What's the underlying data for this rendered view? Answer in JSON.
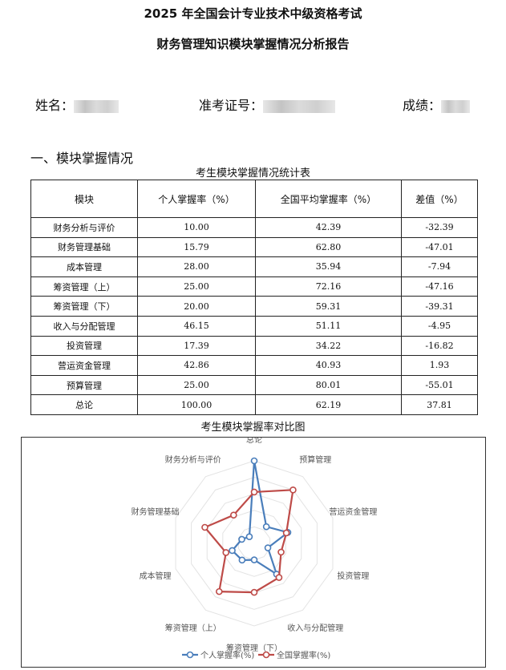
{
  "title_line1": "2025 年全国会计专业技术中级资格考试",
  "title_line2": "财务管理知识模块掌握情况分析报告",
  "info": {
    "name_label": "姓名：",
    "id_label": "准考证号：",
    "score_label": "成绩："
  },
  "section_title": "一、模块掌握情况",
  "table": {
    "caption": "考生模块掌握情况统计表",
    "headers": [
      "模块",
      "个人掌握率（%）",
      "全国平均掌握率（%）",
      "差值（%）"
    ],
    "rows": [
      [
        "财务分析与评价",
        "10.00",
        "42.39",
        "-32.39"
      ],
      [
        "财务管理基础",
        "15.79",
        "62.80",
        "-47.01"
      ],
      [
        "成本管理",
        "28.00",
        "35.94",
        "-7.94"
      ],
      [
        "筹资管理（上）",
        "25.00",
        "72.16",
        "-47.16"
      ],
      [
        "筹资管理（下）",
        "20.00",
        "59.31",
        "-39.31"
      ],
      [
        "收入与分配管理",
        "46.15",
        "51.11",
        "-4.95"
      ],
      [
        "投资管理",
        "17.39",
        "34.22",
        "-16.82"
      ],
      [
        "营运资金管理",
        "42.86",
        "40.93",
        "1.93"
      ],
      [
        "预算管理",
        "25.00",
        "80.01",
        "-55.01"
      ],
      [
        "总论",
        "100.00",
        "62.19",
        "37.81"
      ]
    ]
  },
  "chart_data": {
    "type": "radar",
    "title": "考生模块掌握率对比图",
    "categories": [
      "总论",
      "预算管理",
      "营运资金管理",
      "投资管理",
      "收入与分配管理",
      "筹资管理（下）",
      "筹资管理（上）",
      "成本管理",
      "财务管理基础",
      "财务分析与评价"
    ],
    "series": [
      {
        "name": "个人掌握率(%)",
        "color": "#4a7ebb",
        "values": [
          100,
          25,
          42.86,
          17.39,
          46.15,
          20,
          25,
          28,
          15.79,
          10
        ]
      },
      {
        "name": "全国掌握率(%)",
        "color": "#be4b48",
        "values": [
          62.19,
          80.01,
          40.93,
          34.22,
          51.11,
          59.31,
          72.16,
          35.94,
          62.8,
          42.39
        ]
      }
    ],
    "range": [
      0,
      100
    ],
    "legend": "bottom"
  }
}
